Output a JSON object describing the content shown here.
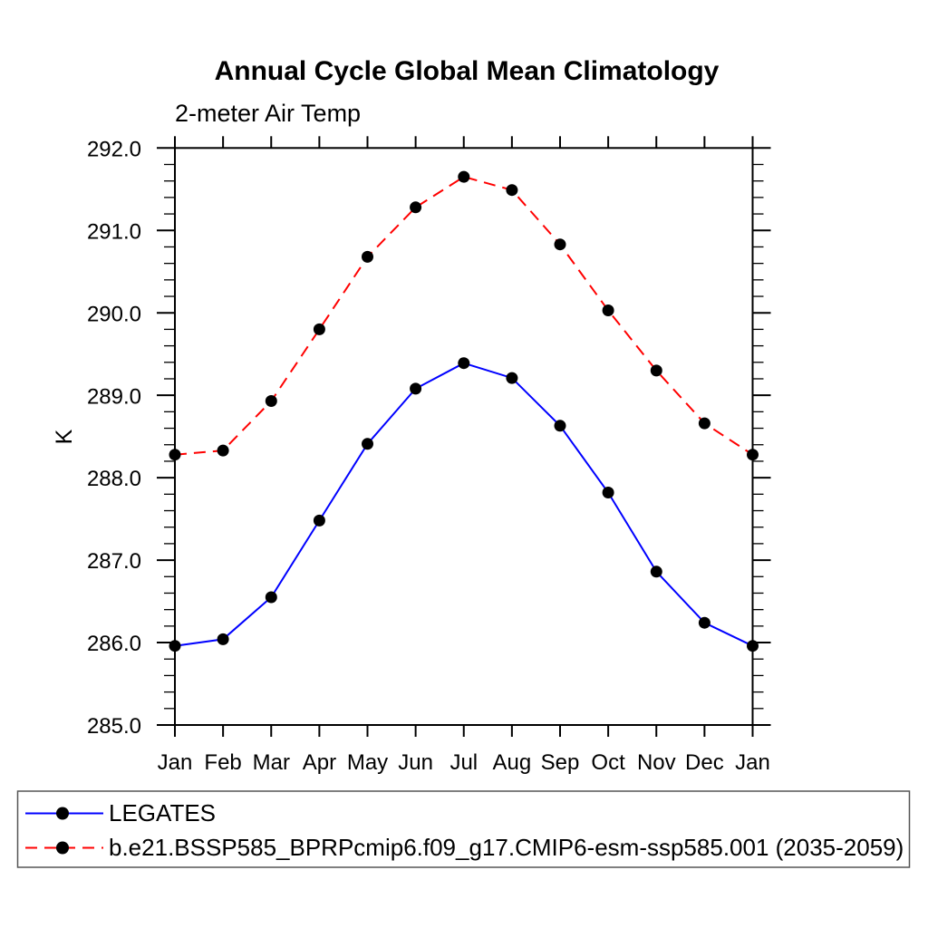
{
  "page": {
    "background": "#ffffff"
  },
  "chart_data": {
    "type": "line",
    "title": "Annual Cycle Global Mean Climatology",
    "subtitle": "2-meter Air Temp",
    "xlabel": "",
    "ylabel": "K",
    "ylim": [
      285.0,
      292.0
    ],
    "y_major_step": 1.0,
    "y_minor_step": 0.2,
    "grid": false,
    "legend_position": "bottom-left-box",
    "categories": [
      "Jan",
      "Feb",
      "Mar",
      "Apr",
      "May",
      "Jun",
      "Jul",
      "Aug",
      "Sep",
      "Oct",
      "Nov",
      "Dec",
      "Jan"
    ],
    "y_tick_labels": [
      "292.0",
      "291.0",
      "290.0",
      "289.0",
      "288.0",
      "287.0",
      "286.0",
      "285.0"
    ],
    "series": [
      {
        "name": "LEGATES",
        "color": "#0000ff",
        "line_style": "solid",
        "marker": "circle",
        "marker_color": "#000000",
        "values": [
          285.96,
          286.04,
          286.55,
          287.48,
          288.41,
          289.08,
          289.39,
          289.21,
          288.63,
          287.82,
          286.86,
          286.24,
          285.96
        ]
      },
      {
        "name": "b.e21.BSSP585_BPRPcmip6.f09_g17.CMIP6-esm-ssp585.001 (2035-2059)",
        "color": "#ff0000",
        "line_style": "dashed",
        "marker": "circle",
        "marker_color": "#000000",
        "values": [
          288.28,
          288.33,
          288.93,
          289.8,
          290.68,
          291.28,
          291.65,
          291.49,
          290.83,
          290.03,
          289.3,
          288.66,
          288.28
        ]
      }
    ],
    "axis_color": "#000000"
  }
}
